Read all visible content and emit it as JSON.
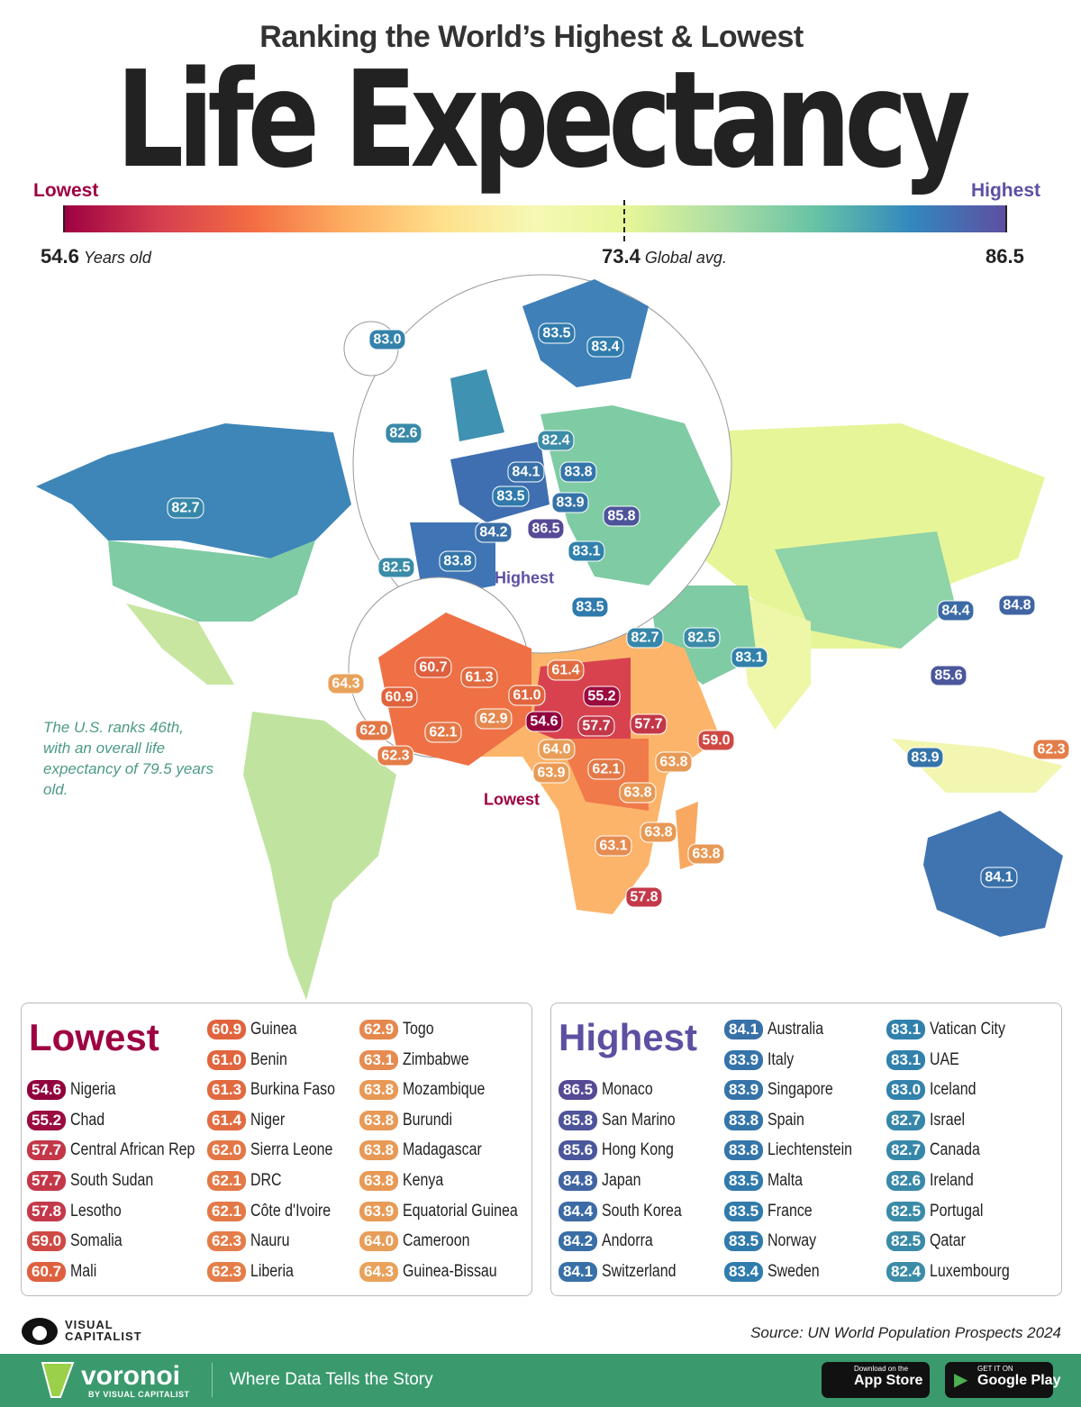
{
  "header": {
    "subtitle": "Ranking the World’s Highest & Lowest",
    "title": "Life Expectancy"
  },
  "scale": {
    "low_label": "Lowest",
    "high_label": "Highest",
    "min": "54.6",
    "min_unit": "Years old",
    "avg": "73.4",
    "avg_unit": "Global avg.",
    "max": "86.5",
    "colors": [
      "#9e0142",
      "#d53e4f",
      "#f46d43",
      "#fdae61",
      "#fee08b",
      "#f6f9b4",
      "#e6f598",
      "#abdda4",
      "#66c2a5",
      "#3288bd",
      "#5e4fa2"
    ]
  },
  "map": {
    "labels": [
      "83.0",
      "83.5",
      "83.4",
      "82.6",
      "82.4",
      "84.1",
      "83.8",
      "83.5",
      "83.9",
      "85.8",
      "84.2",
      "86.5",
      "83.8",
      "83.1",
      "82.5",
      "83.5",
      "82.7",
      "84.4",
      "84.8",
      "85.6",
      "82.7",
      "82.5",
      "83.1",
      "83.9",
      "84.1",
      "62.3",
      "64.3",
      "60.7",
      "61.3",
      "60.9",
      "61.4",
      "55.2",
      "61.0",
      "62.0",
      "62.1",
      "62.9",
      "54.6",
      "57.7",
      "57.7",
      "59.0",
      "64.0",
      "62.3",
      "63.9",
      "62.1",
      "63.8",
      "63.8",
      "63.8",
      "63.8",
      "63.1",
      "57.8"
    ],
    "highest_note": "Highest",
    "lowest_note": "Lowest",
    "us_note": "The U.S. ranks 46th, with an overall life expectancy of 79.5 years old."
  },
  "lowest": {
    "title": "Lowest",
    "items": [
      {
        "v": "54.6",
        "c": "Nigeria"
      },
      {
        "v": "55.2",
        "c": "Chad"
      },
      {
        "v": "57.7",
        "c": "Central African Rep"
      },
      {
        "v": "57.7",
        "c": "South Sudan"
      },
      {
        "v": "57.8",
        "c": "Lesotho"
      },
      {
        "v": "59.0",
        "c": "Somalia"
      },
      {
        "v": "60.7",
        "c": "Mali"
      },
      {
        "v": "60.9",
        "c": "Guinea"
      },
      {
        "v": "61.0",
        "c": "Benin"
      },
      {
        "v": "61.3",
        "c": "Burkina Faso"
      },
      {
        "v": "61.4",
        "c": "Niger"
      },
      {
        "v": "62.0",
        "c": "Sierra Leone"
      },
      {
        "v": "62.1",
        "c": "DRC"
      },
      {
        "v": "62.1",
        "c": "Côte d'Ivoire"
      },
      {
        "v": "62.3",
        "c": "Nauru"
      },
      {
        "v": "62.3",
        "c": "Liberia"
      },
      {
        "v": "62.9",
        "c": "Togo"
      },
      {
        "v": "63.1",
        "c": "Zimbabwe"
      },
      {
        "v": "63.8",
        "c": "Mozambique"
      },
      {
        "v": "63.8",
        "c": "Burundi"
      },
      {
        "v": "63.8",
        "c": "Madagascar"
      },
      {
        "v": "63.8",
        "c": "Kenya"
      },
      {
        "v": "63.9",
        "c": "Equatorial Guinea"
      },
      {
        "v": "64.0",
        "c": "Cameroon"
      },
      {
        "v": "64.3",
        "c": "Guinea-Bissau"
      }
    ]
  },
  "highest": {
    "title": "Highest",
    "items": [
      {
        "v": "86.5",
        "c": "Monaco"
      },
      {
        "v": "85.8",
        "c": "San Marino"
      },
      {
        "v": "85.6",
        "c": "Hong Kong"
      },
      {
        "v": "84.8",
        "c": "Japan"
      },
      {
        "v": "84.4",
        "c": "South Korea"
      },
      {
        "v": "84.2",
        "c": "Andorra"
      },
      {
        "v": "84.1",
        "c": "Switzerland"
      },
      {
        "v": "84.1",
        "c": "Australia"
      },
      {
        "v": "83.9",
        "c": "Italy"
      },
      {
        "v": "83.9",
        "c": "Singapore"
      },
      {
        "v": "83.8",
        "c": "Spain"
      },
      {
        "v": "83.8",
        "c": "Liechtenstein"
      },
      {
        "v": "83.5",
        "c": "Malta"
      },
      {
        "v": "83.5",
        "c": "France"
      },
      {
        "v": "83.5",
        "c": "Norway"
      },
      {
        "v": "83.4",
        "c": "Sweden"
      },
      {
        "v": "83.1",
        "c": "Vatican City"
      },
      {
        "v": "83.1",
        "c": "UAE"
      },
      {
        "v": "83.0",
        "c": "Iceland"
      },
      {
        "v": "82.7",
        "c": "Israel"
      },
      {
        "v": "82.7",
        "c": "Canada"
      },
      {
        "v": "82.6",
        "c": "Ireland"
      },
      {
        "v": "82.5",
        "c": "Portugal"
      },
      {
        "v": "82.5",
        "c": "Qatar"
      },
      {
        "v": "82.4",
        "c": "Luxembourg"
      }
    ]
  },
  "footer": {
    "source": "Source: UN World Population Prospects 2024",
    "vc_logo": "VISUAL CAPITALIST",
    "brand": "voronoi",
    "brand_sub": "BY VISUAL CAPITALIST",
    "tagline": "Where Data Tells the Story",
    "appstore_small": "Download on the",
    "appstore": "App Store",
    "play_small": "GET IT ON",
    "play": "Google Play"
  }
}
